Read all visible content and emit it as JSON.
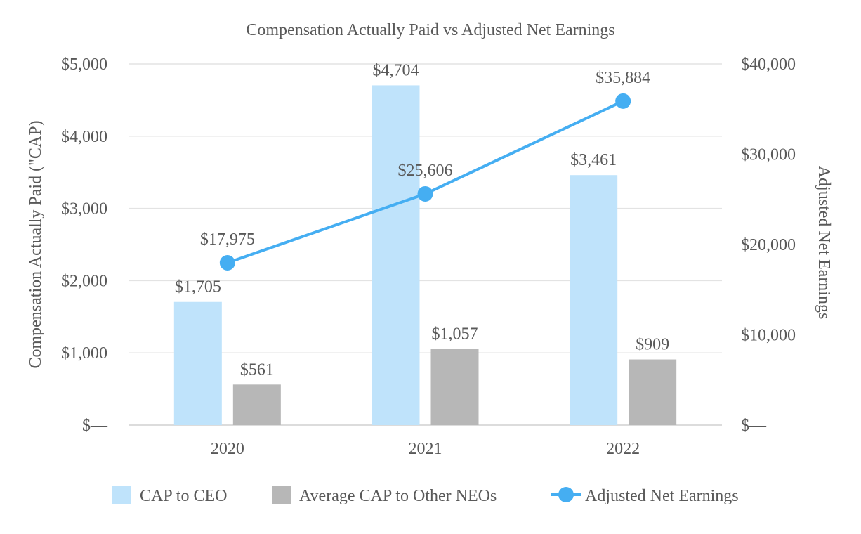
{
  "chart_data": {
    "type": "bar",
    "title": "Compensation Actually Paid vs Adjusted Net Earnings",
    "categories": [
      "2020",
      "2021",
      "2022"
    ],
    "ylabel": "Compensation Actually Paid (\"CAP)",
    "y2label": "Adjusted Net Earnings",
    "ylim": [
      0,
      5000
    ],
    "y2lim": [
      0,
      40000
    ],
    "yticks": [
      "$—",
      "$1,000",
      "$2,000",
      "$3,000",
      "$4,000",
      "$5,000"
    ],
    "y2ticks": [
      "$—",
      "$10,000",
      "$20,000",
      "$30,000",
      "$40,000"
    ],
    "grid": true,
    "legend_position": "bottom",
    "series": [
      {
        "name": "CAP to CEO",
        "type": "bar",
        "axis": "left",
        "color": "#bfe3fb",
        "values": [
          1705,
          4704,
          3461
        ],
        "labels": [
          "$1,705",
          "$4,704",
          "$3,461"
        ]
      },
      {
        "name": "Average CAP to Other NEOs",
        "type": "bar",
        "axis": "left",
        "color": "#b7b7b7",
        "values": [
          561,
          1057,
          909
        ],
        "labels": [
          "$561",
          "$1,057",
          "$909"
        ]
      },
      {
        "name": "Adjusted Net Earnings",
        "type": "line",
        "axis": "right",
        "color": "#45aef2",
        "values": [
          17975,
          25606,
          35884
        ],
        "labels": [
          "$17,975",
          "$25,606",
          "$35,884"
        ]
      }
    ]
  }
}
